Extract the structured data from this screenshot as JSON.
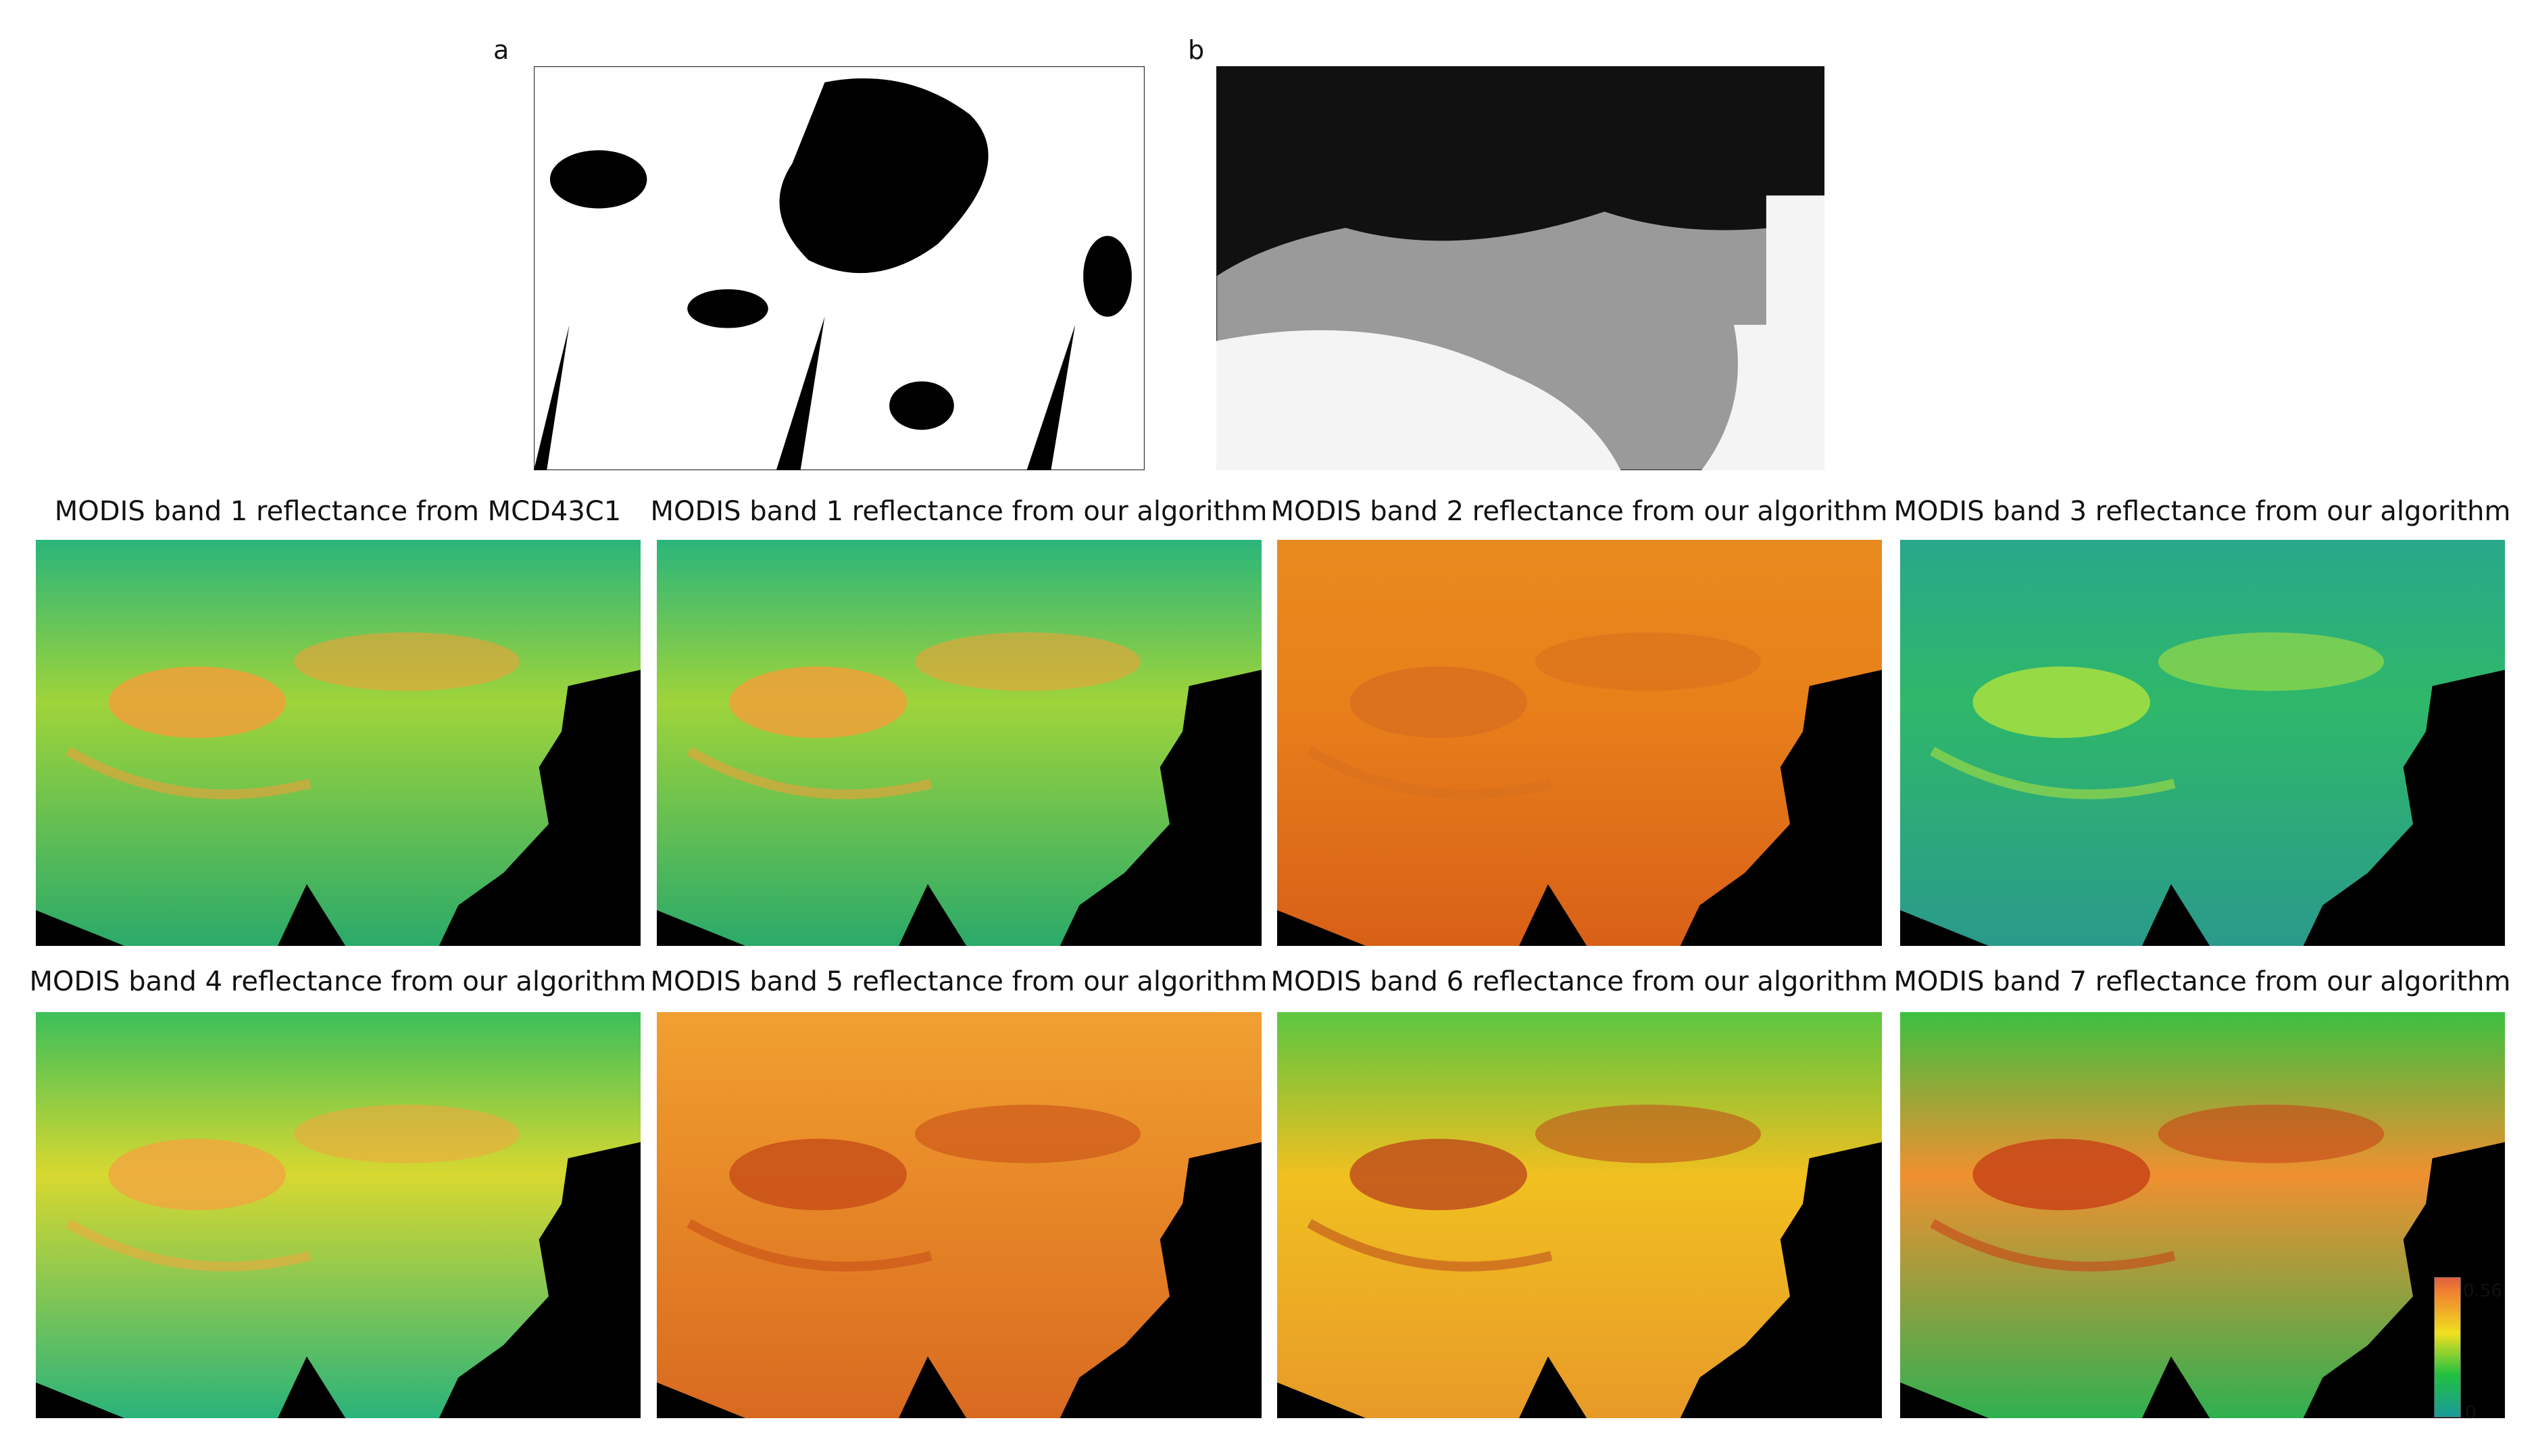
{
  "panels": {
    "a": {
      "label": "a"
    },
    "b": {
      "label": "b"
    }
  },
  "maps": [
    {
      "title": "MODIS band 1 reflectance from MCD43C1"
    },
    {
      "title": "MODIS band 1 reflectance from our algorithm"
    },
    {
      "title": "MODIS band 2 reflectance from our algorithm"
    },
    {
      "title": "MODIS band 3 reflectance from our algorithm"
    },
    {
      "title": "MODIS band 4 reflectance from our algorithm"
    },
    {
      "title": "MODIS band 5 reflectance from our algorithm"
    },
    {
      "title": "MODIS band 6 reflectance from our algorithm"
    },
    {
      "title": "MODIS band 7 reflectance from our algorithm"
    }
  ],
  "colorbar": {
    "max": 0.56,
    "min": 0
  }
}
